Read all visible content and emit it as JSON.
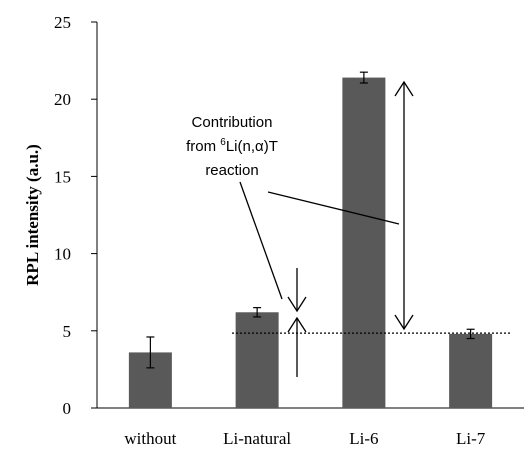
{
  "chart_data": {
    "type": "bar",
    "categories": [
      "without",
      "Li-natural",
      "Li-6",
      "Li-7"
    ],
    "values": [
      3.6,
      6.2,
      21.4,
      4.8
    ],
    "errors": [
      1.0,
      0.3,
      0.35,
      0.3
    ],
    "ylabel": "RPL intensity (a.u.)",
    "xlabel": "",
    "ylim": [
      0,
      25
    ],
    "yticks": [
      "0",
      "5",
      "10",
      "15",
      "20",
      "25"
    ],
    "grid": false,
    "colors": {
      "bar": "#595959",
      "axis": "#000000"
    },
    "annotation": {
      "line1": "Contribution",
      "line2_prefix": "from ",
      "line2_sup": "6",
      "line2_rest": "Li(n,",
      "line2_alpha": "α",
      "line2_end": ")T",
      "line3": "reaction",
      "baseline_value": 4.85
    }
  }
}
